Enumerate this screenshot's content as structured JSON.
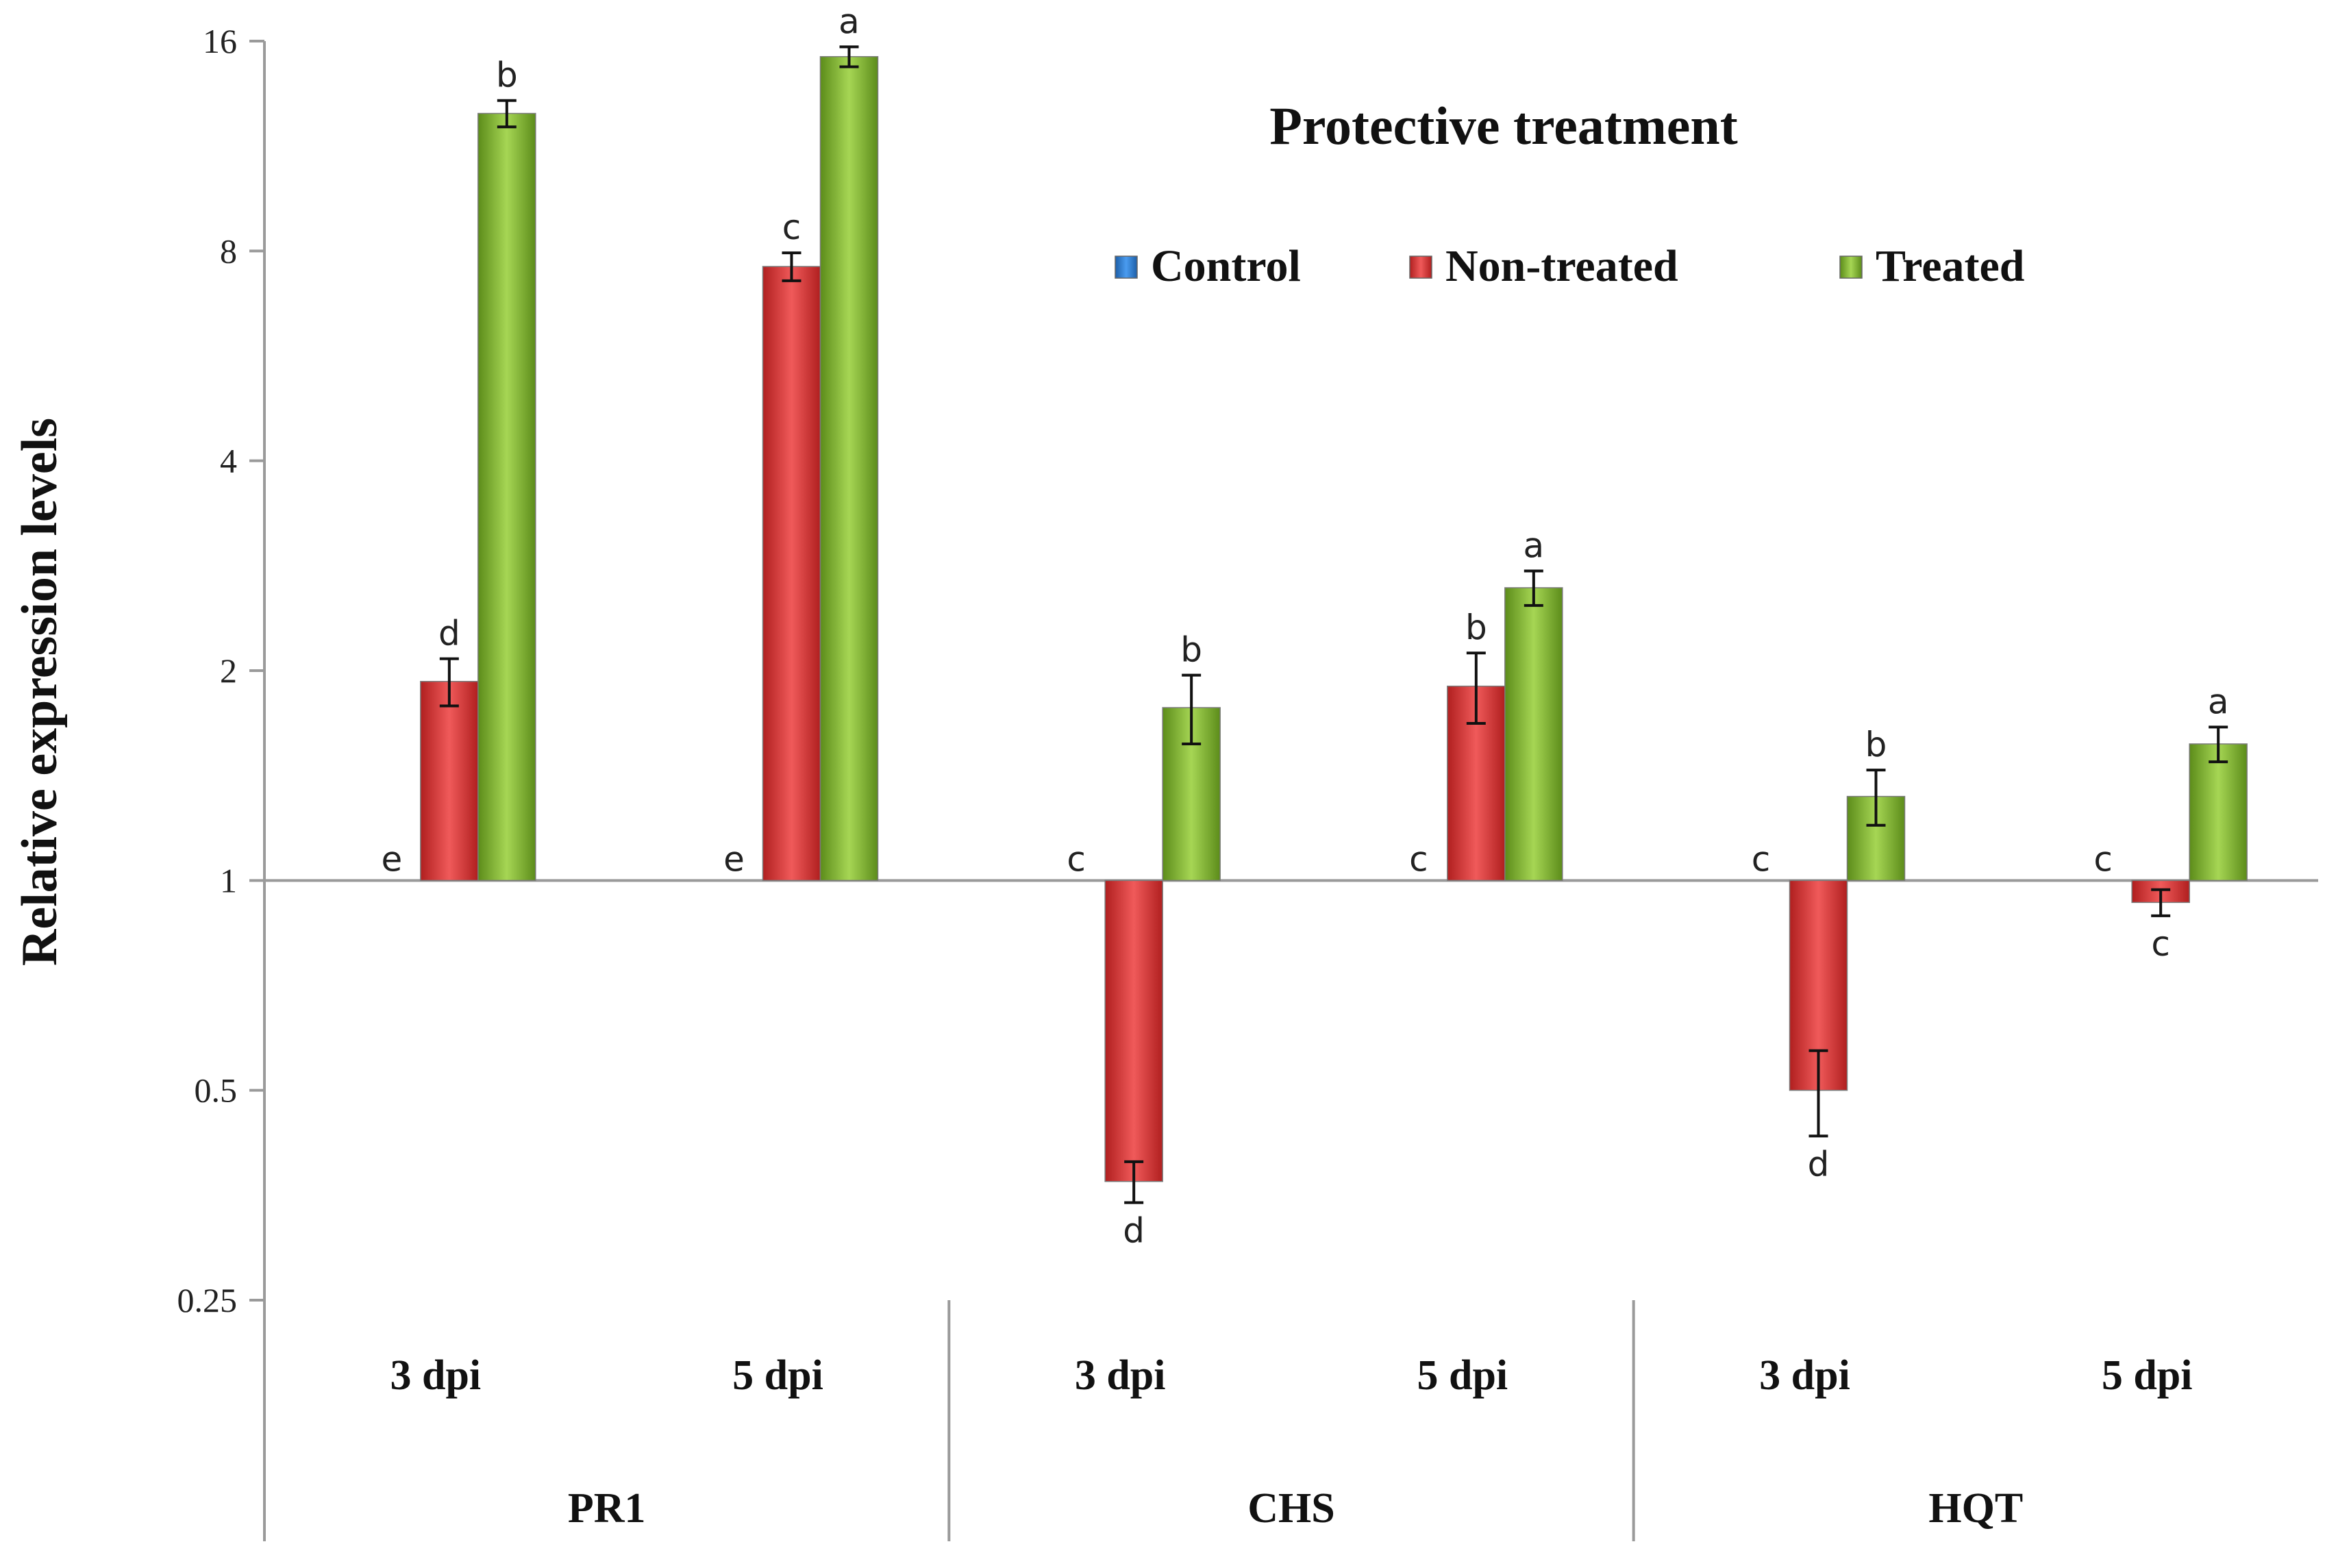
{
  "chart_data": {
    "type": "bar",
    "title": "Protective treatment",
    "xlabel": "",
    "ylabel": "Relative expression levels",
    "yscale": "log2",
    "ylim": [
      0.25,
      16
    ],
    "yticks": [
      0.25,
      0.5,
      1,
      2,
      4,
      8,
      16
    ],
    "ytick_labels": [
      "0.25",
      "0.5",
      "1",
      "2",
      "4",
      "8",
      "16"
    ],
    "baseline": 1,
    "legend_position": "top-center",
    "colors": {
      "Control": "#2e7fd6",
      "Non-treated": "#d83434",
      "Treated": "#7fb32e"
    },
    "groups": [
      "PR1",
      "CHS",
      "HQT"
    ],
    "categories": [
      "3 dpi",
      "5 dpi",
      "3 dpi",
      "5 dpi",
      "3 dpi",
      "5 dpi"
    ],
    "category_group": [
      "PR1",
      "PR1",
      "CHS",
      "CHS",
      "HQT",
      "HQT"
    ],
    "series": [
      {
        "name": "Control",
        "values": [
          1,
          1,
          1,
          1,
          1,
          1
        ],
        "error": [
          0,
          0,
          0,
          0,
          0,
          0
        ],
        "letters": [
          "e",
          "e",
          "c",
          "c",
          "c",
          "c"
        ]
      },
      {
        "name": "Non-treated",
        "values": [
          1.93,
          7.6,
          0.37,
          1.9,
          0.5,
          0.93
        ],
        "error": [
          0.15,
          0.35,
          0.025,
          0.22,
          0.07,
          0.04
        ],
        "letters": [
          "d",
          "c",
          "d",
          "b",
          "d",
          "c"
        ]
      },
      {
        "name": "Treated",
        "values": [
          12.6,
          15.2,
          1.77,
          2.63,
          1.32,
          1.57
        ],
        "error": [
          0.55,
          0.5,
          0.2,
          0.15,
          0.12,
          0.09
        ],
        "letters": [
          "b",
          "a",
          "b",
          "a",
          "b",
          "a"
        ]
      }
    ]
  }
}
